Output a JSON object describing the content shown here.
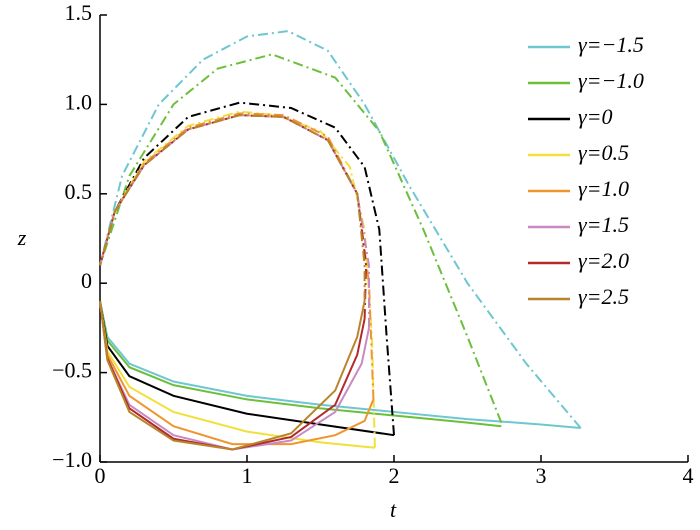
{
  "chart_data": {
    "type": "line",
    "x_label": "t",
    "y_label": "z",
    "xlim": [
      0,
      4
    ],
    "ylim": [
      -1.0,
      1.5
    ],
    "xticks": [
      0,
      1,
      2,
      3,
      4
    ],
    "yticks": [
      {
        "value": -1.0,
        "label": "−1.0"
      },
      {
        "value": -0.5,
        "label": "−0.5"
      },
      0,
      {
        "value": 0.5,
        "label": "0.5"
      },
      {
        "value": 1.0,
        "label": "1.0"
      },
      {
        "value": 1.5,
        "label": "1.5"
      }
    ],
    "line_styles": {
      "values": "solid",
      "values_upper": "dash-dot"
    },
    "legend": "upper right",
    "series": [
      {
        "name": "γ=−1.5",
        "color": "#6ec6d0",
        "x": [
          0,
          0.05,
          0.2,
          0.5,
          1,
          1.5,
          2,
          2.5,
          3,
          3.27
        ],
        "values": [
          -0.1,
          -0.3,
          -0.45,
          -0.55,
          -0.63,
          -0.68,
          -0.72,
          -0.76,
          -0.79,
          -0.81
        ],
        "x_upper": [
          3.27,
          2.9,
          2.5,
          2.1,
          1.8,
          1.55,
          1.28,
          1.0,
          0.7,
          0.4,
          0.15,
          0
        ],
        "values_upper": [
          -0.81,
          -0.45,
          0.0,
          0.55,
          1.0,
          1.3,
          1.41,
          1.38,
          1.25,
          1.0,
          0.6,
          0.1
        ]
      },
      {
        "name": "γ=−1.0",
        "color": "#6bbf3a",
        "x": [
          0,
          0.05,
          0.2,
          0.5,
          1,
          1.5,
          2,
          2.5,
          2.73
        ],
        "values": [
          -0.1,
          -0.32,
          -0.47,
          -0.57,
          -0.65,
          -0.7,
          -0.74,
          -0.78,
          -0.8
        ],
        "x_upper": [
          2.73,
          2.5,
          2.2,
          1.9,
          1.6,
          1.17,
          0.8,
          0.5,
          0.2,
          0
        ],
        "values_upper": [
          -0.78,
          -0.3,
          0.3,
          0.85,
          1.15,
          1.28,
          1.2,
          1.0,
          0.6,
          0.1
        ]
      },
      {
        "name": "γ=0",
        "color": "#000000",
        "x": [
          0,
          0.05,
          0.2,
          0.5,
          1,
          1.5,
          2.0
        ],
        "values": [
          -0.1,
          -0.35,
          -0.52,
          -0.63,
          -0.73,
          -0.79,
          -0.85
        ],
        "x_upper": [
          2.0,
          1.95,
          1.9,
          1.8,
          1.6,
          1.3,
          0.95,
          0.6,
          0.3,
          0.1,
          0
        ],
        "values_upper": [
          -0.85,
          -0.3,
          0.3,
          0.65,
          0.87,
          0.98,
          1.01,
          0.93,
          0.7,
          0.4,
          0.1
        ]
      },
      {
        "name": "γ=0.5",
        "color": "#f2e03a",
        "x": [
          0,
          0.05,
          0.2,
          0.5,
          1,
          1.5,
          1.87
        ],
        "values": [
          -0.1,
          -0.38,
          -0.58,
          -0.72,
          -0.83,
          -0.89,
          -0.92
        ],
        "x_upper": [
          1.87,
          1.85,
          1.8,
          1.7,
          1.5,
          1.2,
          0.95,
          0.6,
          0.3,
          0.1,
          0
        ],
        "values_upper": [
          -0.92,
          -0.3,
          0.3,
          0.65,
          0.85,
          0.94,
          0.96,
          0.88,
          0.68,
          0.4,
          0.1
        ]
      },
      {
        "name": "γ=1.0",
        "color": "#f0952e",
        "x": [
          0,
          0.05,
          0.2,
          0.5,
          0.9,
          1.3,
          1.6,
          1.8,
          1.86
        ],
        "values": [
          -0.1,
          -0.4,
          -0.63,
          -0.8,
          -0.9,
          -0.9,
          -0.85,
          -0.77,
          -0.65
        ],
        "x_upper": [
          1.86,
          1.83,
          1.75,
          1.55,
          1.25,
          0.95,
          0.6,
          0.3,
          0.1,
          0
        ],
        "values_upper": [
          -0.65,
          0,
          0.5,
          0.82,
          0.94,
          0.95,
          0.87,
          0.67,
          0.4,
          0.1
        ]
      },
      {
        "name": "γ=1.5",
        "color": "#c98ac4",
        "x": [
          0,
          0.05,
          0.2,
          0.5,
          0.9,
          1.3,
          1.6,
          1.78,
          1.83
        ],
        "values": [
          -0.1,
          -0.42,
          -0.68,
          -0.85,
          -0.93,
          -0.88,
          -0.72,
          -0.45,
          -0.25
        ],
        "x_upper": [
          1.83,
          1.83,
          1.75,
          1.55,
          1.25,
          0.95,
          0.6,
          0.3,
          0.1,
          0
        ],
        "values_upper": [
          -0.25,
          0.1,
          0.5,
          0.8,
          0.93,
          0.94,
          0.86,
          0.66,
          0.4,
          0.1
        ]
      },
      {
        "name": "γ=2.0",
        "color": "#b22a2a",
        "x": [
          0,
          0.05,
          0.2,
          0.5,
          0.9,
          1.3,
          1.6,
          1.75,
          1.8
        ],
        "values": [
          -0.1,
          -0.42,
          -0.7,
          -0.87,
          -0.93,
          -0.86,
          -0.68,
          -0.4,
          -0.2
        ],
        "x_upper": [
          1.8,
          1.81,
          1.75,
          1.55,
          1.25,
          0.95,
          0.6,
          0.3,
          0.1,
          0
        ],
        "values_upper": [
          -0.2,
          0.1,
          0.5,
          0.8,
          0.93,
          0.94,
          0.86,
          0.66,
          0.4,
          0.1
        ]
      },
      {
        "name": "γ=2.5",
        "color": "#b8862a",
        "x": [
          0,
          0.05,
          0.2,
          0.5,
          0.9,
          1.3,
          1.6,
          1.75,
          1.8
        ],
        "values": [
          -0.1,
          -0.43,
          -0.72,
          -0.88,
          -0.93,
          -0.84,
          -0.6,
          -0.3,
          -0.1
        ],
        "x_upper": [
          1.8,
          1.8,
          1.75,
          1.55,
          1.25,
          0.95,
          0.6,
          0.3,
          0.1,
          0
        ],
        "values_upper": [
          -0.1,
          0.1,
          0.5,
          0.8,
          0.93,
          0.94,
          0.86,
          0.66,
          0.4,
          0.1
        ]
      }
    ]
  }
}
